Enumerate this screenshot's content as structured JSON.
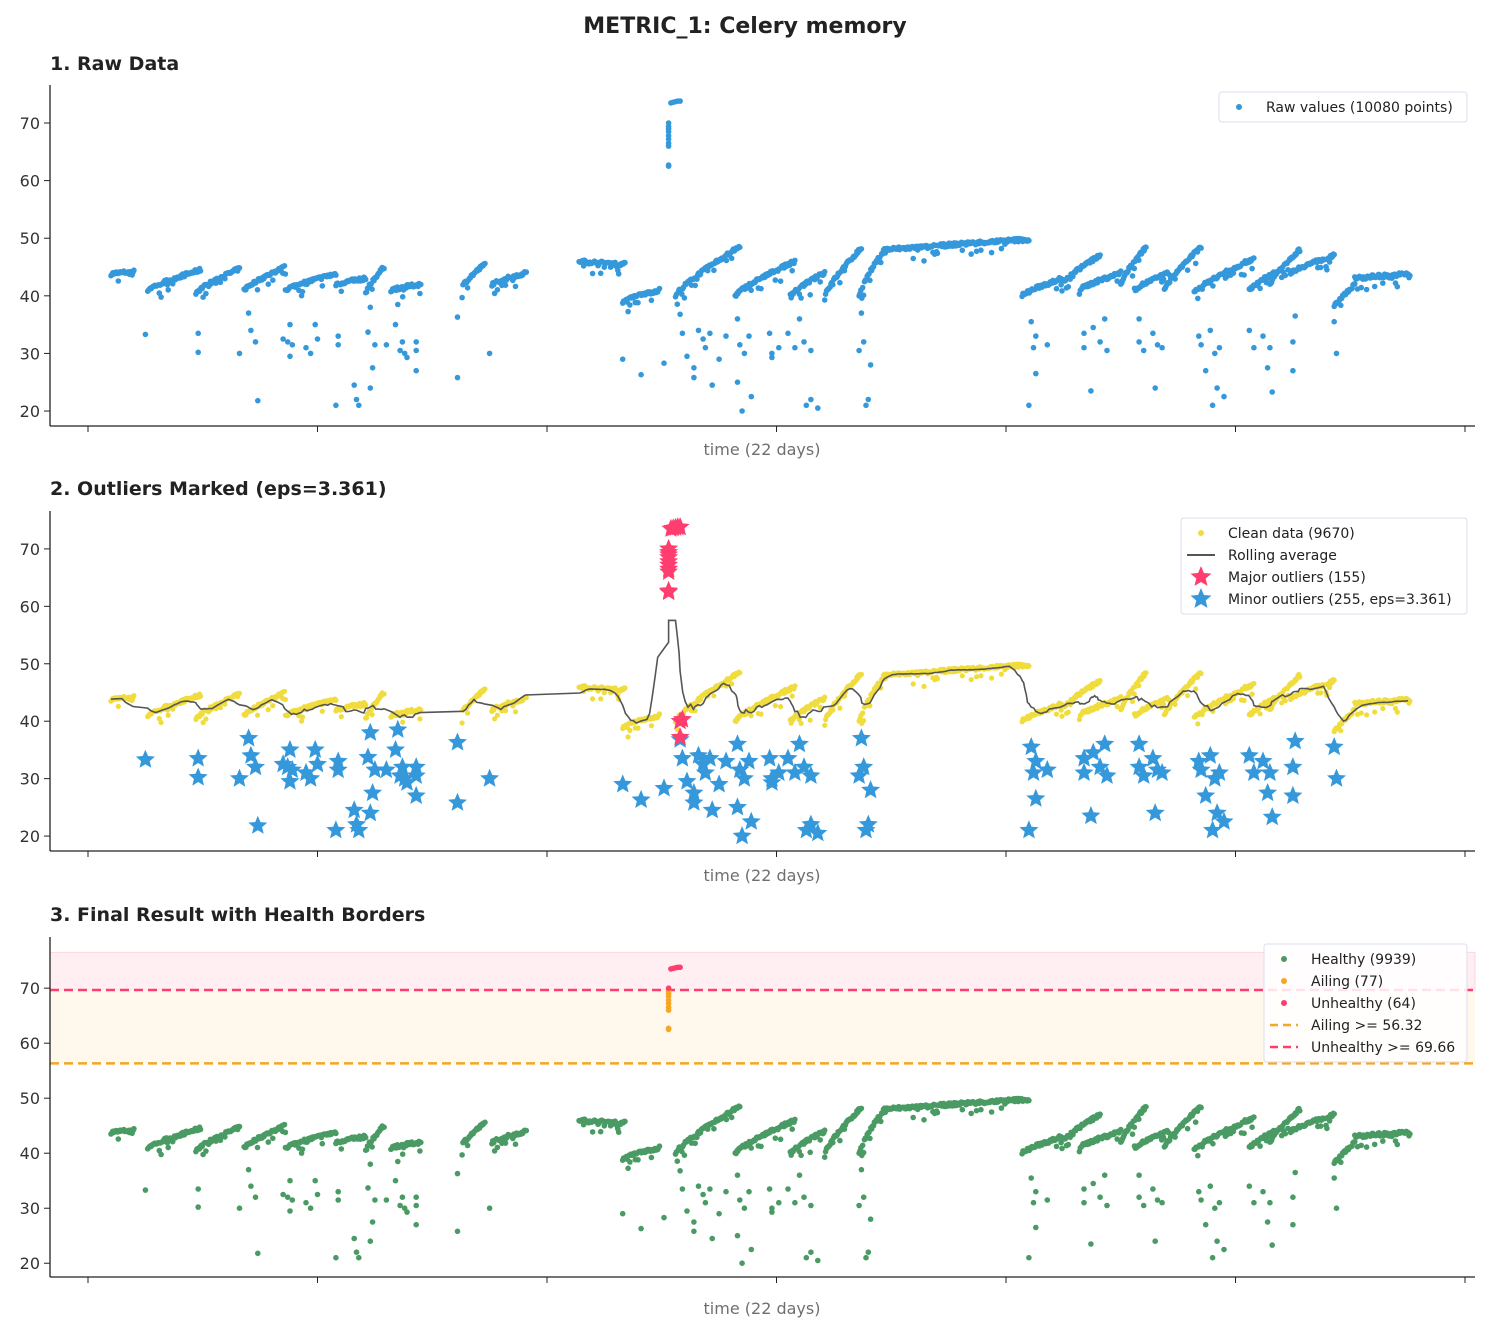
{
  "chart_data": [
    {
      "type": "scatter",
      "suptitle": "METRIC_1: Celery memory",
      "title": "1. Raw Data",
      "xlabel": "time (22 days)",
      "ylabel": "",
      "yticks": [
        20,
        30,
        40,
        50,
        60,
        70
      ],
      "ylim": [
        17.4,
        76.6
      ],
      "xticks_count": 7,
      "xtick_labels_shown": false,
      "legend": {
        "position": "top-right",
        "entries": [
          {
            "label": "Raw values (10080 points)",
            "color": "#3498db",
            "marker": "dot"
          }
        ]
      },
      "color": "#3498db"
    },
    {
      "type": "scatter",
      "title": "2. Outliers Marked  (eps=3.361)",
      "xlabel": "time (22 days)",
      "yticks": [
        20,
        30,
        40,
        50,
        60,
        70
      ],
      "ylim": [
        17.4,
        76.6
      ],
      "legend": {
        "position": "top-right",
        "entries": [
          {
            "label": "Clean data (9670)",
            "color": "#f0dc3c",
            "marker": "dot"
          },
          {
            "label": "Rolling average",
            "color": "#555555",
            "marker": "line"
          },
          {
            "label": "Major outliers (155)",
            "color": "#ff3d6e",
            "marker": "star"
          },
          {
            "label": "Minor outliers (255, eps=3.361)",
            "color": "#3498db",
            "marker": "star"
          }
        ]
      }
    },
    {
      "type": "scatter",
      "title": "3. Final Result with Health Borders",
      "xlabel": "time (22 days)",
      "yticks": [
        20,
        30,
        40,
        50,
        60,
        70
      ],
      "ylim": [
        17.5,
        79.3
      ],
      "thresholds": {
        "ailing": 56.32,
        "unhealthy": 69.66
      },
      "legend": {
        "position": "top-right",
        "entries": [
          {
            "label": "Healthy (9939)",
            "color": "#4a9a64",
            "marker": "dot"
          },
          {
            "label": "Ailing (77)",
            "color": "#f5a623",
            "marker": "dot"
          },
          {
            "label": "Unhealthy (64)",
            "color": "#ff3d6e",
            "marker": "dot"
          },
          {
            "label": "Ailing >= 56.32",
            "color": "#f5a623",
            "marker": "dash"
          },
          {
            "label": "Unhealthy >= 69.66",
            "color": "#ff3d6e",
            "marker": "dash"
          }
        ]
      }
    }
  ],
  "series": {
    "segments_x_start_x_end_y_start_y_end": [
      [
        0.1,
        0.2,
        43.8,
        44.2
      ],
      [
        0.26,
        0.49,
        41,
        44.5
      ],
      [
        0.47,
        0.66,
        40.5,
        44.7
      ],
      [
        0.68,
        0.86,
        41,
        45
      ],
      [
        0.86,
        1.08,
        41,
        43.8
      ],
      [
        1.08,
        1.21,
        42,
        43
      ],
      [
        1.21,
        1.29,
        40.5,
        45
      ],
      [
        1.32,
        1.45,
        41,
        42
      ],
      [
        1.63,
        1.73,
        41.5,
        45.5
      ],
      [
        1.76,
        1.91,
        42,
        44
      ],
      [
        2.14,
        2.34,
        46,
        45.5
      ],
      [
        2.33,
        2.49,
        39,
        41
      ],
      [
        2.56,
        2.84,
        40,
        48.5
      ],
      [
        2.82,
        3.08,
        40,
        46
      ],
      [
        3.06,
        3.21,
        40,
        44
      ],
      [
        3.21,
        3.37,
        40,
        48.3
      ],
      [
        3.36,
        3.47,
        40,
        48
      ],
      [
        3.47,
        3.67,
        48,
        48.5
      ],
      [
        3.67,
        4.1,
        48.5,
        49.8
      ],
      [
        4.07,
        4.24,
        40,
        43
      ],
      [
        4.24,
        4.41,
        42,
        47
      ],
      [
        4.32,
        4.5,
        41,
        44
      ],
      [
        4.5,
        4.61,
        42,
        48.5
      ],
      [
        4.56,
        4.71,
        41,
        44
      ],
      [
        4.69,
        4.85,
        41,
        48.5
      ],
      [
        4.82,
        5.08,
        40.5,
        46.5
      ],
      [
        5.06,
        5.17,
        41,
        44
      ],
      [
        5.15,
        5.28,
        42,
        48
      ],
      [
        5.24,
        5.43,
        44,
        47
      ],
      [
        5.43,
        5.52,
        38,
        42
      ],
      [
        5.52,
        5.76,
        43,
        43.8
      ]
    ],
    "spike": [
      [
        2.53,
        62.5
      ],
      [
        2.53,
        62.7
      ],
      [
        2.53,
        66
      ],
      [
        2.53,
        66.5
      ],
      [
        2.53,
        67.2
      ],
      [
        2.53,
        67.8
      ],
      [
        2.53,
        68.5
      ],
      [
        2.53,
        69
      ],
      [
        2.53,
        69.4
      ],
      [
        2.53,
        70
      ],
      [
        2.54,
        73.5
      ],
      [
        2.55,
        73.6
      ],
      [
        2.56,
        73.7
      ],
      [
        2.57,
        73.8
      ],
      [
        2.58,
        73.8
      ]
    ],
    "low_points": [
      [
        0.25,
        33.3
      ],
      [
        0.48,
        33.5
      ],
      [
        0.48,
        30.2
      ],
      [
        0.66,
        30
      ],
      [
        0.7,
        37
      ],
      [
        0.71,
        34
      ],
      [
        0.73,
        32
      ],
      [
        0.74,
        21.8
      ],
      [
        0.85,
        32.5
      ],
      [
        0.87,
        32
      ],
      [
        0.88,
        35
      ],
      [
        0.88,
        29.5
      ],
      [
        0.89,
        31.5
      ],
      [
        0.95,
        31
      ],
      [
        0.97,
        30
      ],
      [
        0.99,
        35
      ],
      [
        1.0,
        32.5
      ],
      [
        1.08,
        21
      ],
      [
        1.09,
        31.5
      ],
      [
        1.09,
        33
      ],
      [
        1.16,
        24.5
      ],
      [
        1.17,
        22
      ],
      [
        1.18,
        21
      ],
      [
        1.22,
        33.7
      ],
      [
        1.23,
        38
      ],
      [
        1.23,
        24
      ],
      [
        1.24,
        27.5
      ],
      [
        1.25,
        31.5
      ],
      [
        1.3,
        31.5
      ],
      [
        1.34,
        35
      ],
      [
        1.35,
        38.5
      ],
      [
        1.36,
        30.5
      ],
      [
        1.37,
        32
      ],
      [
        1.38,
        30
      ],
      [
        1.39,
        29.3
      ],
      [
        1.43,
        32
      ],
      [
        1.43,
        30.5
      ],
      [
        1.43,
        27
      ],
      [
        1.61,
        36.3
      ],
      [
        1.61,
        25.8
      ],
      [
        1.75,
        30
      ],
      [
        2.33,
        29
      ],
      [
        2.41,
        26.3
      ],
      [
        2.51,
        28.3
      ],
      [
        2.58,
        36.8
      ],
      [
        2.59,
        33.5
      ],
      [
        2.61,
        29.5
      ],
      [
        2.64,
        27.5
      ],
      [
        2.64,
        25.8
      ],
      [
        2.66,
        34
      ],
      [
        2.68,
        32.5
      ],
      [
        2.69,
        31
      ],
      [
        2.71,
        33.5
      ],
      [
        2.72,
        24.5
      ],
      [
        2.75,
        29
      ],
      [
        2.78,
        33
      ],
      [
        2.83,
        25
      ],
      [
        2.83,
        36
      ],
      [
        2.84,
        31.5
      ],
      [
        2.85,
        20
      ],
      [
        2.86,
        30
      ],
      [
        2.88,
        33
      ],
      [
        2.89,
        22.5
      ],
      [
        2.97,
        33.5
      ],
      [
        2.98,
        30
      ],
      [
        2.98,
        29.3
      ],
      [
        3.01,
        31
      ],
      [
        3.05,
        33.5
      ],
      [
        3.08,
        31
      ],
      [
        3.1,
        36
      ],
      [
        3.12,
        32
      ],
      [
        3.13,
        21
      ],
      [
        3.15,
        22
      ],
      [
        3.15,
        30.5
      ],
      [
        3.18,
        20.5
      ],
      [
        3.36,
        30.5
      ],
      [
        3.37,
        37
      ],
      [
        3.38,
        32
      ],
      [
        3.39,
        21
      ],
      [
        3.4,
        22
      ],
      [
        3.41,
        28
      ],
      [
        4.1,
        21
      ],
      [
        4.11,
        35.5
      ],
      [
        4.12,
        31
      ],
      [
        4.13,
        33
      ],
      [
        4.13,
        26.5
      ],
      [
        4.18,
        31.5
      ],
      [
        4.34,
        33.5
      ],
      [
        4.34,
        31
      ],
      [
        4.37,
        23.5
      ],
      [
        4.38,
        34.5
      ],
      [
        4.41,
        32
      ],
      [
        4.43,
        36
      ],
      [
        4.44,
        30.5
      ],
      [
        4.58,
        36
      ],
      [
        4.58,
        32
      ],
      [
        4.6,
        30.5
      ],
      [
        4.64,
        33.5
      ],
      [
        4.65,
        24
      ],
      [
        4.66,
        31.5
      ],
      [
        4.68,
        31
      ],
      [
        4.84,
        33
      ],
      [
        4.85,
        31.5
      ],
      [
        4.87,
        27
      ],
      [
        4.89,
        34
      ],
      [
        4.9,
        21
      ],
      [
        4.91,
        30
      ],
      [
        4.92,
        24
      ],
      [
        4.93,
        31
      ],
      [
        4.95,
        22.5
      ],
      [
        5.06,
        34
      ],
      [
        5.08,
        31
      ],
      [
        5.12,
        33
      ],
      [
        5.14,
        27.5
      ],
      [
        5.15,
        31
      ],
      [
        5.16,
        23.3
      ],
      [
        5.25,
        32
      ],
      [
        5.25,
        27
      ],
      [
        5.26,
        36.5
      ],
      [
        5.43,
        35.5
      ],
      [
        5.44,
        30
      ]
    ],
    "major_low_outliers": [
      [
        2.58,
        40
      ],
      [
        2.58,
        37.2
      ],
      [
        2.59,
        40.3
      ]
    ]
  }
}
